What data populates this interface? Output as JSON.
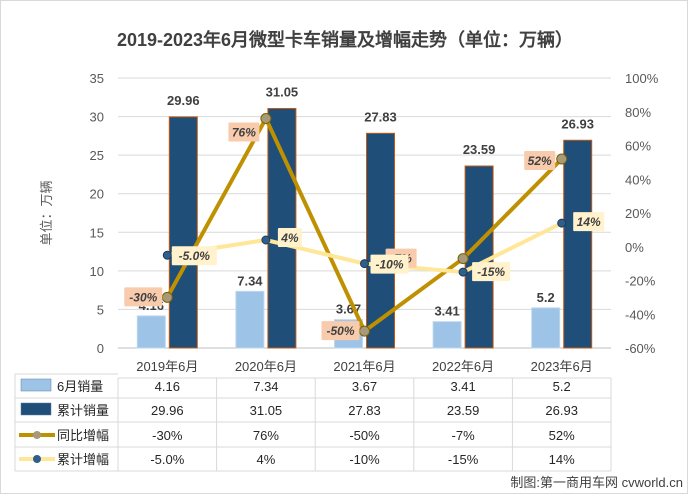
{
  "chart_data": {
    "type": "bar",
    "title": "2019-2023年6月微型卡车销量及增幅走势（单位：万辆）",
    "ylabel": "单位：万辆",
    "categories": [
      "2019年6月",
      "2020年6月",
      "2021年6月",
      "2022年6月",
      "2023年6月"
    ],
    "ylim": [
      0,
      35
    ],
    "yticks": [
      "0",
      "5",
      "10",
      "15",
      "20",
      "25",
      "30",
      "35"
    ],
    "y2lim": [
      -60,
      100
    ],
    "y2ticks": [
      "-60%",
      "-40%",
      "-20%",
      "0%",
      "20%",
      "40%",
      "60%",
      "80%",
      "100%"
    ],
    "series": [
      {
        "name": "6月销量",
        "kind": "bar",
        "axis": "left",
        "color": "#9dc3e6",
        "values": [
          4.16,
          7.34,
          3.67,
          3.41,
          5.2
        ],
        "labels": [
          "4.16",
          "7.34",
          "3.67",
          "3.41",
          "5.2"
        ]
      },
      {
        "name": "累计销量",
        "kind": "bar",
        "axis": "left",
        "color": "#1f4e79",
        "values": [
          29.96,
          31.05,
          27.83,
          23.59,
          26.93
        ],
        "labels": [
          "29.96",
          "31.05",
          "27.83",
          "23.59",
          "26.93"
        ]
      },
      {
        "name": "同比增幅",
        "kind": "line",
        "axis": "right",
        "color": "#bf9000",
        "marker": "#a69a7a",
        "values": [
          -30,
          76,
          -50,
          -7,
          52
        ],
        "labels": [
          "-30%",
          "76%",
          "-50%",
          "-7%",
          "52%"
        ]
      },
      {
        "name": "累计增幅",
        "kind": "line",
        "axis": "right",
        "color": "#ffe699",
        "marker": "#2e5f8a",
        "values": [
          -5.0,
          4,
          -10,
          -15,
          14
        ],
        "labels": [
          "-5.0%",
          "4%",
          "-10%",
          "-15%",
          "14%"
        ]
      }
    ],
    "legend": "bottom data table"
  },
  "credit": "制图:第一商用车网 cvworld.cn"
}
